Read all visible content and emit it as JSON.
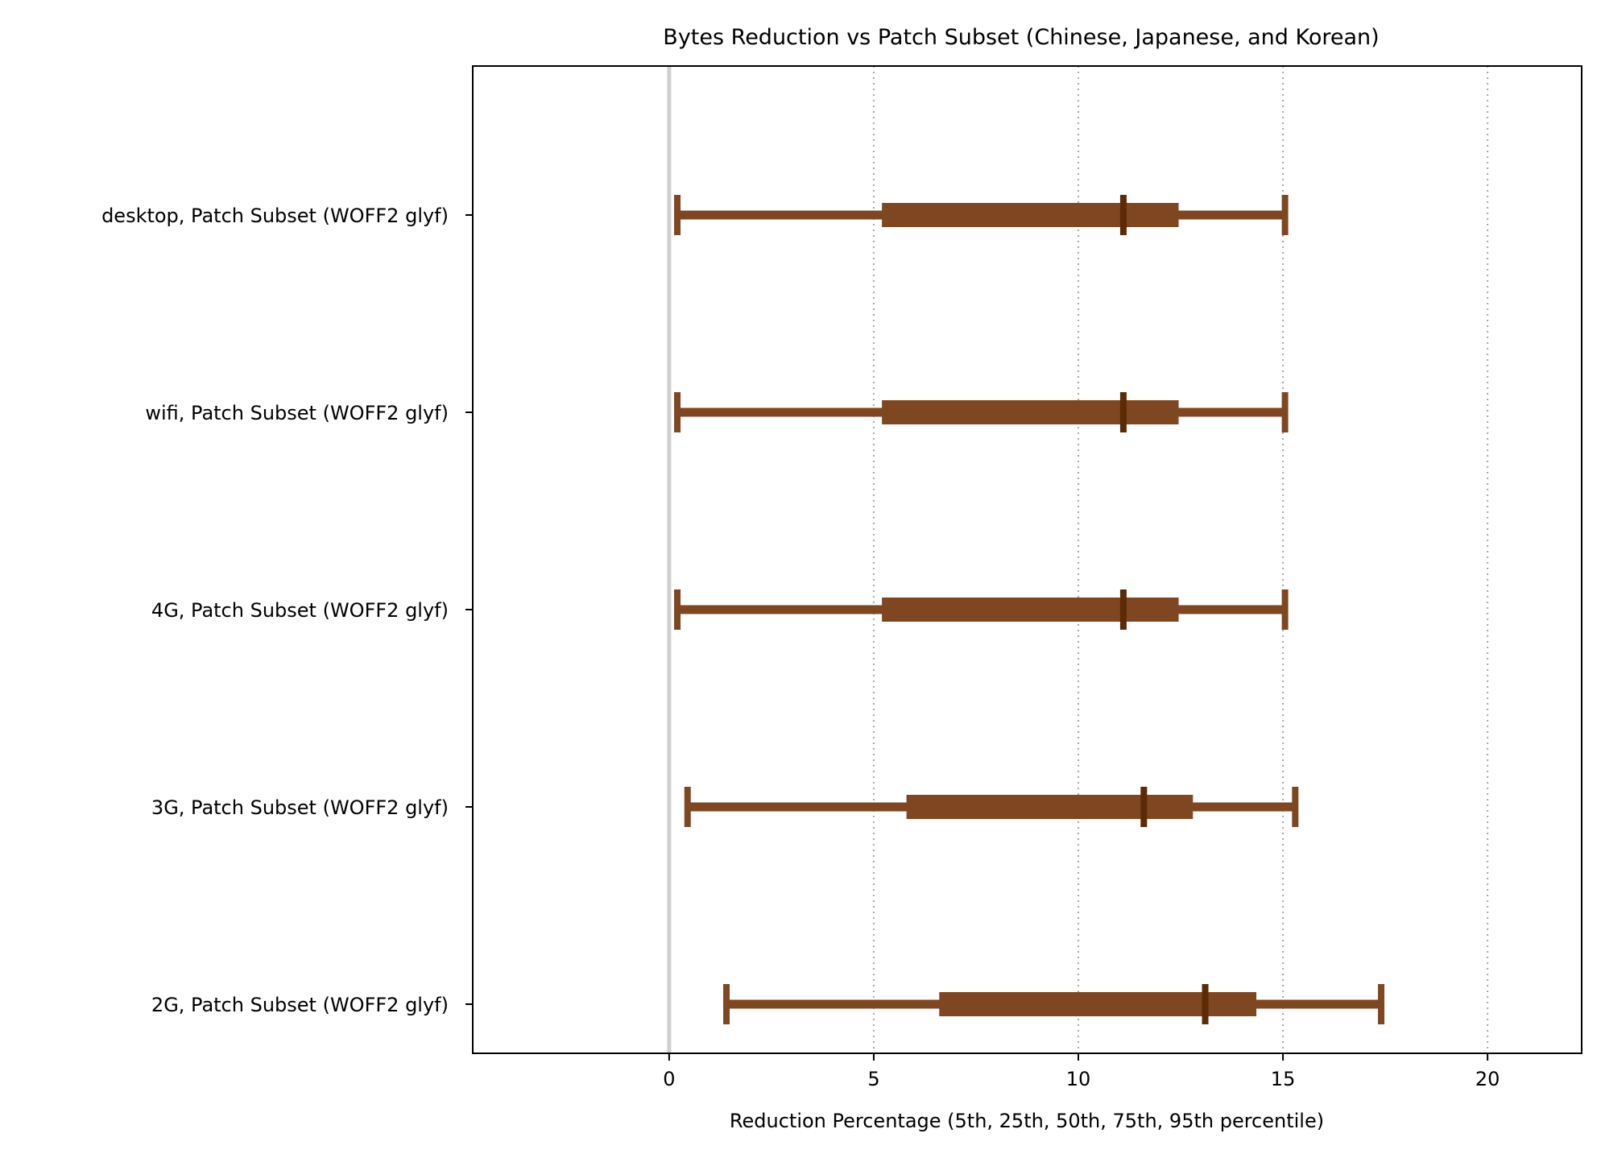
{
  "chart_data": {
    "type": "box",
    "title": "Bytes Reduction vs Patch Subset (Chinese, Japanese, and Korean)",
    "xlabel": "Reduction Percentage  (5th, 25th, 50th, 75th, 95th percentile)",
    "ylabel": "",
    "xlim": [
      -4.8,
      22.3
    ],
    "xticks": [
      0,
      5,
      10,
      15,
      20
    ],
    "xtick_labels": [
      "0",
      "5",
      "10",
      "15",
      "20"
    ],
    "grid": "vertical dotted",
    "reference_line_x": 0,
    "color": "#7f4622",
    "median_color": "#5c2a06",
    "categories": [
      "desktop, Patch Subset (WOFF2 glyf)",
      "wifi, Patch Subset (WOFF2 glyf)",
      "4G, Patch Subset (WOFF2 glyf)",
      "3G, Patch Subset (WOFF2 glyf)",
      "2G, Patch Subset (WOFF2 glyf)"
    ],
    "series": [
      {
        "p5": 0.2,
        "p25": 5.2,
        "p50": 11.1,
        "p75": 12.45,
        "p95": 15.05
      },
      {
        "p5": 0.2,
        "p25": 5.2,
        "p50": 11.1,
        "p75": 12.45,
        "p95": 15.05
      },
      {
        "p5": 0.2,
        "p25": 5.2,
        "p50": 11.1,
        "p75": 12.45,
        "p95": 15.05
      },
      {
        "p5": 0.45,
        "p25": 5.8,
        "p50": 11.6,
        "p75": 12.8,
        "p95": 15.3
      },
      {
        "p5": 1.4,
        "p25": 6.6,
        "p50": 13.1,
        "p75": 14.35,
        "p95": 17.4
      }
    ]
  }
}
